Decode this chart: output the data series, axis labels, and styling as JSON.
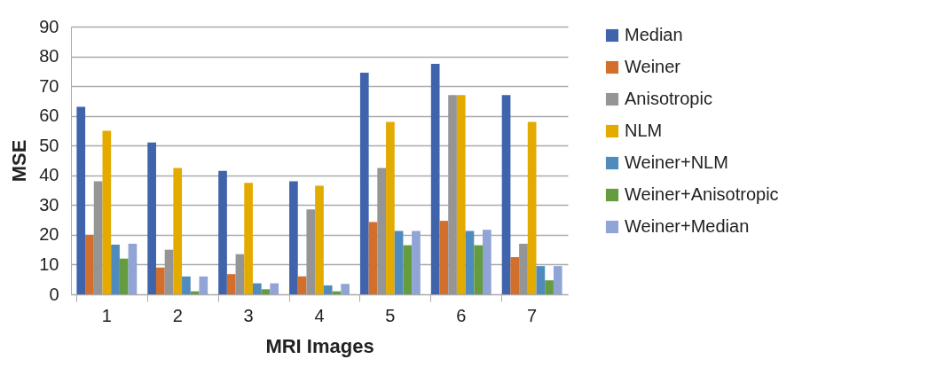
{
  "chart_data": {
    "type": "bar",
    "xlabel": "MRI Images",
    "ylabel": "MSE",
    "categories": [
      "1",
      "2",
      "3",
      "4",
      "5",
      "6",
      "7"
    ],
    "series": [
      {
        "name": "Median",
        "color": "#3f64ab",
        "values": [
          63,
          51,
          41.5,
          38,
          74.5,
          77.5,
          67
        ]
      },
      {
        "name": "Weiner",
        "color": "#d36f2c",
        "values": [
          20,
          9,
          6.8,
          6,
          24.3,
          24.7,
          12.5
        ]
      },
      {
        "name": "Anisotropic",
        "color": "#959595",
        "values": [
          38,
          15,
          13.5,
          28.5,
          42.5,
          67,
          17
        ]
      },
      {
        "name": "NLM",
        "color": "#e3ab00",
        "values": [
          55,
          42.5,
          37.5,
          36.5,
          58,
          67,
          58
        ]
      },
      {
        "name": "Weiner+NLM",
        "color": "#4f8bbd",
        "values": [
          16.7,
          6,
          3.7,
          3,
          21.3,
          21.3,
          9.5
        ]
      },
      {
        "name": "Weiner+Anisotropic",
        "color": "#659c3f",
        "values": [
          12,
          1,
          1.7,
          1,
          16.5,
          16.5,
          4.7
        ]
      },
      {
        "name": "Weiner+Median",
        "color": "#90a4d6",
        "values": [
          17,
          6,
          3.7,
          3.5,
          21.3,
          21.7,
          9.5
        ]
      }
    ],
    "ylim": [
      0,
      90
    ],
    "yticks": [
      0,
      10,
      20,
      30,
      40,
      50,
      60,
      70,
      80,
      90
    ],
    "grid": "y",
    "legend": "right"
  }
}
